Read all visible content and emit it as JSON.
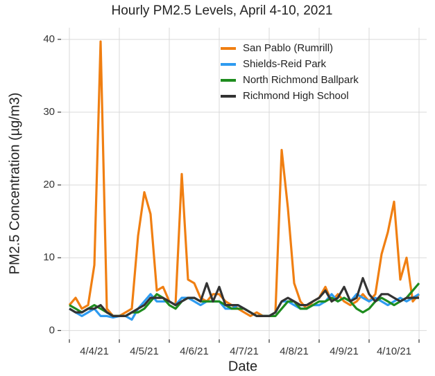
{
  "chart_data": {
    "type": "line",
    "title": "Hourly PM2.5 Levels, April 4-10, 2021",
    "x_label": "Date",
    "y_label": "PM2.5 Concentration (µg/m3)",
    "categories": [
      null,
      null,
      null,
      null,
      "4/4/21",
      null,
      null,
      null,
      null,
      null,
      null,
      null,
      "4/5/21",
      null,
      null,
      null,
      null,
      null,
      null,
      null,
      "4/6/21",
      null,
      null,
      null,
      null,
      null,
      null,
      null,
      "4/7/21",
      null,
      null,
      null,
      null,
      null,
      null,
      null,
      "4/8/21",
      null,
      null,
      null,
      null,
      null,
      null,
      null,
      "4/9/21",
      null,
      null,
      null,
      null,
      null,
      null,
      null,
      "4/10/21",
      null,
      null,
      null,
      null
    ],
    "series": [
      {
        "name": "San Pablo (Rumrill)",
        "color": "#f07f12",
        "values": [
          3.5,
          4.5,
          3,
          3.5,
          9,
          39.7,
          3,
          2,
          2,
          2.5,
          3,
          13,
          19,
          16,
          5.5,
          6,
          4,
          3.5,
          21.5,
          7,
          6.5,
          4.5,
          4,
          5,
          5,
          4,
          3.5,
          3,
          2.5,
          2,
          2.5,
          2,
          2,
          2.5,
          24.8,
          16.8,
          6.5,
          4,
          3,
          4,
          4.5,
          6,
          4,
          5,
          4,
          3.5,
          4,
          5,
          4,
          5,
          10.5,
          13.5,
          17.7,
          7,
          10,
          4,
          5
        ]
      },
      {
        "name": "Shields-Reid Park",
        "color": "#2e9bf0",
        "values": [
          3,
          2.5,
          2,
          2.5,
          3,
          2,
          2,
          1.8,
          2,
          2,
          1.5,
          3,
          4,
          5,
          4,
          4,
          4,
          3.5,
          4.5,
          4.5,
          4,
          3.5,
          4,
          4,
          4,
          3,
          3,
          3.5,
          3,
          2.5,
          2,
          2,
          2,
          2.5,
          4,
          4,
          3.5,
          3,
          3,
          3.5,
          3.5,
          4,
          5,
          4,
          4.5,
          4,
          5,
          4.5,
          4,
          4.5,
          4,
          3.5,
          4,
          4.5,
          4,
          4.5,
          5
        ]
      },
      {
        "name": "North Richmond Ballpark",
        "color": "#1e8c1e",
        "values": [
          3.5,
          3,
          2.5,
          3,
          3.5,
          3,
          2.5,
          2,
          2,
          2,
          2.5,
          2.5,
          3,
          4,
          5,
          4.5,
          3.5,
          3,
          4,
          4.5,
          4.5,
          4,
          4,
          4,
          4,
          3.5,
          3,
          3,
          3,
          2.5,
          2,
          2,
          2,
          2,
          3,
          4,
          4,
          3,
          3,
          3.5,
          4,
          4,
          4.5,
          4,
          4.5,
          4,
          3,
          2.5,
          3,
          4,
          4.5,
          4,
          3.5,
          4,
          4.5,
          5.5,
          6.5
        ]
      },
      {
        "name": "Richmond High School",
        "color": "#333333",
        "values": [
          3,
          2.5,
          2.5,
          3,
          3,
          3.5,
          2.5,
          2,
          2,
          2,
          2.5,
          3,
          3.5,
          4.5,
          4.5,
          4.5,
          4,
          3.5,
          4,
          4.5,
          4.5,
          4,
          6.5,
          4,
          6,
          3.5,
          3.5,
          3.5,
          3,
          2.5,
          2,
          2,
          2,
          2.5,
          4,
          4.5,
          4,
          3.5,
          3.5,
          4,
          4.5,
          5.5,
          4,
          4.5,
          6,
          4,
          4.5,
          7.2,
          5,
          4,
          5,
          5,
          4.5,
          4,
          4.5,
          4.5,
          4.5
        ]
      }
    ],
    "ylim": [
      -1.2,
      41.6
    ],
    "yticks": [
      0,
      10,
      20,
      30,
      40
    ],
    "grid": true,
    "legend": "top-right"
  }
}
